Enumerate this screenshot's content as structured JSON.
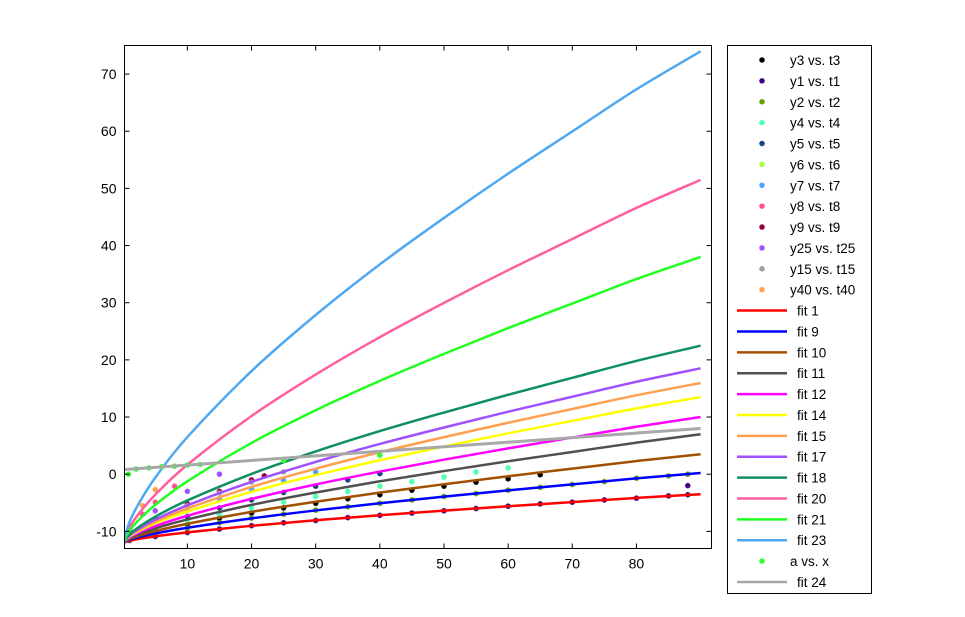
{
  "chart_data": {
    "type": "line",
    "title": "",
    "xlabel": "",
    "ylabel": "",
    "xlim": [
      0.2,
      91.7
    ],
    "ylim": [
      -13,
      75
    ],
    "xticks": [
      10,
      20,
      30,
      40,
      50,
      60,
      70,
      80
    ],
    "yticks": [
      -10,
      0,
      10,
      20,
      30,
      40,
      50,
      60,
      70
    ],
    "grid": false,
    "legend_position": "outside-right",
    "scatter": [
      {
        "name": "y3 vs. t3",
        "color": "#000000",
        "x": [
          1,
          5,
          10,
          15,
          20,
          25,
          30,
          35,
          40,
          45,
          50,
          55,
          60,
          65
        ],
        "y": [
          -11.4,
          -10.0,
          -8.8,
          -7.7,
          -6.8,
          -5.9,
          -5.1,
          -4.3,
          -3.6,
          -2.8,
          -2.1,
          -1.4,
          -0.8,
          -0.1
        ]
      },
      {
        "name": "y1 vs. t1",
        "color": "#400080",
        "x": [
          1,
          5,
          10,
          15,
          20,
          25,
          30,
          35,
          40,
          45,
          50,
          55,
          60,
          65,
          70,
          75,
          80,
          85,
          88,
          88
        ],
        "y": [
          -11.6,
          -10.9,
          -10.2,
          -9.6,
          -9.0,
          -8.5,
          -8.1,
          -7.6,
          -7.2,
          -6.8,
          -6.4,
          -6.0,
          -5.6,
          -5.2,
          -4.9,
          -4.5,
          -4.2,
          -3.8,
          -3.6,
          -2.0
        ]
      },
      {
        "name": "y2 vs. t2",
        "color": "#60a000",
        "x": [
          1,
          5,
          10,
          15,
          20,
          25,
          30,
          35,
          40,
          45,
          50,
          55,
          60,
          65,
          70,
          75,
          80,
          85,
          88
        ],
        "y": [
          -11.5,
          -10.4,
          -9.4,
          -8.5,
          -7.7,
          -7.0,
          -6.3,
          -5.7,
          -5.1,
          -4.5,
          -3.9,
          -3.4,
          -2.8,
          -2.3,
          -1.8,
          -1.3,
          -0.7,
          -0.3,
          0.0
        ]
      },
      {
        "name": "y4 vs. t4",
        "color": "#50ffb0",
        "x": [
          1,
          5,
          10,
          15,
          20,
          25,
          30,
          35,
          40,
          45,
          50,
          55,
          60
        ],
        "y": [
          -11.3,
          -9.7,
          -8.2,
          -7.0,
          -5.9,
          -4.9,
          -3.9,
          -3.0,
          -2.1,
          -1.3,
          -0.5,
          0.4,
          1.1
        ]
      },
      {
        "name": "y5 vs. t5",
        "color": "#104080",
        "x": [
          1,
          5,
          10,
          15,
          20,
          25,
          30,
          35,
          40
        ],
        "y": [
          -11.1,
          -9.2,
          -7.4,
          -5.9,
          -4.5,
          -3.2,
          -2.1,
          -1.0,
          0.1
        ]
      },
      {
        "name": "y6 vs. t6",
        "color": "#a0ff40",
        "x": [
          1,
          5,
          10,
          15,
          20,
          25,
          30
        ],
        "y": [
          -10.9,
          -8.5,
          -6.4,
          -4.5,
          -2.9,
          -1.3,
          0.1
        ]
      },
      {
        "name": "y7 vs. t7",
        "color": "#50a0ff",
        "x": [
          1,
          5,
          10,
          15,
          20,
          25,
          30
        ],
        "y": [
          -10.9,
          -8.4,
          -6.2,
          -4.3,
          -2.6,
          -1.1,
          0.4
        ]
      },
      {
        "name": "y8 vs. t8",
        "color": "#ff5090",
        "x": [
          1,
          3,
          5,
          8
        ],
        "y": [
          -9.7,
          -7.0,
          -4.9,
          -2.1
        ]
      },
      {
        "name": "y9 vs. t9",
        "color": "#900040",
        "x": [
          1,
          5,
          10,
          15,
          20,
          22
        ],
        "y": [
          -10.65,
          -7.8,
          -5.2,
          -3.0,
          -1.0,
          -0.3
        ]
      },
      {
        "name": "y25 vs. t25",
        "color": "#a050ff",
        "x": [
          1,
          5,
          10,
          15
        ],
        "y": [
          -10.2,
          -6.4,
          -3.0,
          0.0
        ]
      },
      {
        "name": "y15 vs. t15",
        "color": "#a0a0a0",
        "x": [
          1,
          5,
          10,
          15,
          20,
          25
        ],
        "y": [
          -10.7,
          -8.0,
          -5.5,
          -3.3,
          -1.4,
          0.4
        ]
      },
      {
        "name": "y40 vs. t40",
        "color": "#ffa050",
        "x": [
          1,
          3,
          5
        ],
        "y": [
          -9.0,
          -5.5,
          -2.7
        ]
      }
    ],
    "fit_x": [
      0,
      1,
      2.5,
      5,
      10,
      20,
      30,
      40,
      50,
      60,
      70,
      80,
      90
    ],
    "fits": [
      {
        "name": "fit 1",
        "color": "#ff0000",
        "y": [
          -12,
          -11.64,
          -11.31,
          -10.87,
          -10.17,
          -9.03,
          -8.06,
          -7.18,
          -6.38,
          -5.61,
          -4.88,
          -4.15,
          -3.5
        ]
      },
      {
        "name": "fit 9",
        "color": "#0000ff",
        "y": [
          -12,
          -11.48,
          -11.0,
          -10.38,
          -9.37,
          -7.73,
          -6.34,
          -5.08,
          -3.93,
          -2.83,
          -1.78,
          -0.73,
          0.21
        ]
      },
      {
        "name": "fit 10",
        "color": "#a05000",
        "y": [
          -12,
          -11.34,
          -10.74,
          -9.95,
          -8.67,
          -6.59,
          -4.82,
          -3.22,
          -1.76,
          -0.36,
          0.97,
          2.3,
          3.49
        ]
      },
      {
        "name": "fit 11",
        "color": "#505050",
        "y": [
          -12,
          -11.19,
          -10.45,
          -9.48,
          -7.92,
          -5.37,
          -3.2,
          -1.24,
          0.55,
          2.26,
          3.89,
          5.52,
          6.99
        ]
      },
      {
        "name": "fit 12",
        "color": "#ff00ff",
        "y": [
          -12,
          -11.06,
          -10.21,
          -9.08,
          -7.27,
          -4.32,
          -1.8,
          0.46,
          2.54,
          4.52,
          6.41,
          8.3,
          10.0
        ]
      },
      {
        "name": "fit 14",
        "color": "#ffff00",
        "y": [
          -12,
          -10.91,
          -9.92,
          -8.62,
          -6.52,
          -3.09,
          -0.18,
          2.44,
          4.85,
          7.15,
          9.33,
          11.52,
          13.49
        ]
      },
      {
        "name": "fit 15",
        "color": "#ffa050",
        "y": [
          -12,
          -10.8,
          -9.72,
          -8.29,
          -5.99,
          -2.23,
          0.96,
          3.84,
          6.48,
          9.0,
          11.4,
          13.8,
          15.96
        ]
      },
      {
        "name": "fit 17",
        "color": "#a050ff",
        "y": [
          -12,
          -10.69,
          -9.51,
          -7.95,
          -5.44,
          -1.34,
          2.15,
          5.29,
          8.17,
          10.93,
          13.55,
          16.17,
          18.52
        ]
      },
      {
        "name": "fit 18",
        "color": "#109060",
        "y": [
          -12,
          -10.52,
          -9.19,
          -7.43,
          -4.59,
          0.05,
          3.98,
          7.54,
          10.79,
          13.9,
          16.86,
          19.82,
          22.48
        ]
      },
      {
        "name": "fit 20",
        "color": "#ff5ea0",
        "y": [
          -12,
          -9.28,
          -6.82,
          -3.58,
          1.65,
          10.18,
          17.43,
          23.97,
          29.97,
          35.69,
          41.14,
          46.59,
          51.49
        ]
      },
      {
        "name": "fit 21",
        "color": "#20ff20",
        "y": [
          -12,
          -9.85,
          -7.92,
          -5.37,
          -1.25,
          5.47,
          11.18,
          16.33,
          21.05,
          25.56,
          29.85,
          34.14,
          38.0
        ]
      },
      {
        "name": "fit 23",
        "color": "#50a8f0",
        "y": [
          -12,
          -8.31,
          -4.99,
          -0.6,
          6.49,
          18.04,
          27.85,
          36.71,
          44.83,
          52.58,
          59.96,
          67.34,
          73.98
        ]
      }
    ],
    "extra_scatter": {
      "name": "a vs. x",
      "color": "#30ff30",
      "x": [
        0.8,
        2,
        4,
        6,
        8,
        10,
        12,
        25,
        40
      ],
      "y": [
        0,
        0.9,
        1.1,
        1.3,
        1.4,
        1.6,
        1.7,
        2.4,
        3.3
      ]
    },
    "extra_fit": {
      "name": "fit 24",
      "color": "#a8a8a8",
      "x": [
        0,
        90
      ],
      "y": [
        0.8,
        8.0
      ]
    }
  }
}
